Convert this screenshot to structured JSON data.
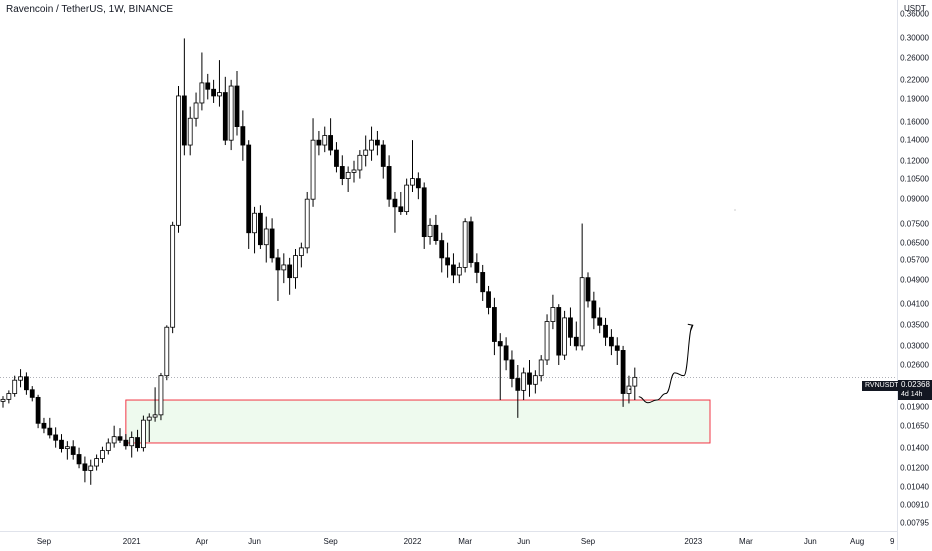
{
  "header": {
    "title": "Ravencoin / TetherUS, 1W, BINANCE"
  },
  "price_scale": {
    "unit": "USDT",
    "labels": [
      "0.36000",
      "0.30000",
      "0.26000",
      "0.22000",
      "0.19000",
      "0.16000",
      "0.14000",
      "0.12000",
      "0.10500",
      "0.09000",
      "0.07500",
      "0.06500",
      "0.05700",
      "0.04900",
      "0.04100",
      "0.03500",
      "0.03000",
      "0.02600",
      "0.01900",
      "0.01650",
      "0.01400",
      "0.01200",
      "0.01040",
      "0.00910",
      "0.00795"
    ]
  },
  "time_scale": {
    "labels": [
      "Sep",
      "2021",
      "Apr",
      "Jun",
      "Sep",
      "2022",
      "Mar",
      "Jun",
      "Sep",
      "2023",
      "Mar",
      "Jun",
      "Aug",
      "9"
    ]
  },
  "last_price": {
    "symbol": "RVNUSDT",
    "price": "0.02368",
    "countdown": "4d 14h"
  },
  "colors": {
    "up": "#ffffff",
    "down": "#000000",
    "wick": "#000000",
    "zone_fill": "#eefaee",
    "zone_border": "#f23645",
    "price_line": "#9598a1",
    "axis_text": "#131722"
  },
  "chart_data": {
    "type": "candlestick",
    "title": "Ravencoin / TetherUS, 1W, BINANCE",
    "y_scale": "log",
    "ylim": [
      0.0075,
      0.4
    ],
    "y_ticks": [
      0.36,
      0.3,
      0.26,
      0.22,
      0.19,
      0.16,
      0.14,
      0.12,
      0.105,
      0.09,
      0.075,
      0.065,
      0.057,
      0.049,
      0.041,
      0.035,
      0.03,
      0.026,
      0.019,
      0.0165,
      0.014,
      0.012,
      0.0104,
      0.0091,
      0.00795
    ],
    "x_ticks": [
      "Sep",
      "2021",
      "Apr",
      "Jun",
      "Sep",
      "2022",
      "Mar",
      "Jun",
      "Sep",
      "2023",
      "Mar",
      "Jun",
      "Aug",
      "9"
    ],
    "candles": [
      {
        "o": 0.0198,
        "h": 0.0206,
        "l": 0.0189,
        "c": 0.0201
      },
      {
        "o": 0.0201,
        "h": 0.0215,
        "l": 0.0195,
        "c": 0.021
      },
      {
        "o": 0.021,
        "h": 0.024,
        "l": 0.0205,
        "c": 0.0232
      },
      {
        "o": 0.0232,
        "h": 0.0252,
        "l": 0.022,
        "c": 0.0238
      },
      {
        "o": 0.0238,
        "h": 0.0246,
        "l": 0.0208,
        "c": 0.0216
      },
      {
        "o": 0.0216,
        "h": 0.0222,
        "l": 0.0198,
        "c": 0.0204
      },
      {
        "o": 0.0204,
        "h": 0.0208,
        "l": 0.0162,
        "c": 0.0168
      },
      {
        "o": 0.0168,
        "h": 0.0175,
        "l": 0.0156,
        "c": 0.0162
      },
      {
        "o": 0.0162,
        "h": 0.0175,
        "l": 0.015,
        "c": 0.0154
      },
      {
        "o": 0.0154,
        "h": 0.0163,
        "l": 0.014,
        "c": 0.0148
      },
      {
        "o": 0.0148,
        "h": 0.0155,
        "l": 0.0135,
        "c": 0.0139
      },
      {
        "o": 0.0139,
        "h": 0.0147,
        "l": 0.0128,
        "c": 0.0141
      },
      {
        "o": 0.0141,
        "h": 0.0148,
        "l": 0.0128,
        "c": 0.0133
      },
      {
        "o": 0.0133,
        "h": 0.014,
        "l": 0.012,
        "c": 0.0124
      },
      {
        "o": 0.0124,
        "h": 0.0131,
        "l": 0.0108,
        "c": 0.0118
      },
      {
        "o": 0.0118,
        "h": 0.0128,
        "l": 0.0106,
        "c": 0.0122
      },
      {
        "o": 0.0122,
        "h": 0.0133,
        "l": 0.0118,
        "c": 0.0129
      },
      {
        "o": 0.0129,
        "h": 0.0141,
        "l": 0.0125,
        "c": 0.0137
      },
      {
        "o": 0.0137,
        "h": 0.015,
        "l": 0.0133,
        "c": 0.0145
      },
      {
        "o": 0.0145,
        "h": 0.0165,
        "l": 0.014,
        "c": 0.0152
      },
      {
        "o": 0.0152,
        "h": 0.0162,
        "l": 0.0145,
        "c": 0.0148
      },
      {
        "o": 0.0148,
        "h": 0.0155,
        "l": 0.0138,
        "c": 0.0142
      },
      {
        "o": 0.0142,
        "h": 0.0158,
        "l": 0.013,
        "c": 0.0151
      },
      {
        "o": 0.0151,
        "h": 0.016,
        "l": 0.0136,
        "c": 0.014
      },
      {
        "o": 0.014,
        "h": 0.0178,
        "l": 0.0136,
        "c": 0.0172
      },
      {
        "o": 0.0172,
        "h": 0.0181,
        "l": 0.0146,
        "c": 0.0176
      },
      {
        "o": 0.0176,
        "h": 0.022,
        "l": 0.017,
        "c": 0.0179
      },
      {
        "o": 0.0179,
        "h": 0.0245,
        "l": 0.0172,
        "c": 0.024
      },
      {
        "o": 0.024,
        "h": 0.035,
        "l": 0.0232,
        "c": 0.0345
      },
      {
        "o": 0.0345,
        "h": 0.076,
        "l": 0.033,
        "c": 0.074
      },
      {
        "o": 0.074,
        "h": 0.21,
        "l": 0.07,
        "c": 0.195
      },
      {
        "o": 0.195,
        "h": 0.3,
        "l": 0.125,
        "c": 0.135
      },
      {
        "o": 0.135,
        "h": 0.18,
        "l": 0.125,
        "c": 0.165
      },
      {
        "o": 0.165,
        "h": 0.2,
        "l": 0.155,
        "c": 0.185
      },
      {
        "o": 0.185,
        "h": 0.27,
        "l": 0.175,
        "c": 0.215
      },
      {
        "o": 0.215,
        "h": 0.23,
        "l": 0.19,
        "c": 0.205
      },
      {
        "o": 0.205,
        "h": 0.22,
        "l": 0.185,
        "c": 0.195
      },
      {
        "o": 0.195,
        "h": 0.255,
        "l": 0.18,
        "c": 0.2
      },
      {
        "o": 0.2,
        "h": 0.225,
        "l": 0.135,
        "c": 0.14
      },
      {
        "o": 0.14,
        "h": 0.22,
        "l": 0.13,
        "c": 0.21
      },
      {
        "o": 0.21,
        "h": 0.235,
        "l": 0.145,
        "c": 0.155
      },
      {
        "o": 0.155,
        "h": 0.175,
        "l": 0.12,
        "c": 0.135
      },
      {
        "o": 0.135,
        "h": 0.14,
        "l": 0.062,
        "c": 0.07
      },
      {
        "o": 0.07,
        "h": 0.085,
        "l": 0.06,
        "c": 0.081
      },
      {
        "o": 0.081,
        "h": 0.086,
        "l": 0.062,
        "c": 0.064
      },
      {
        "o": 0.064,
        "h": 0.079,
        "l": 0.056,
        "c": 0.072
      },
      {
        "o": 0.072,
        "h": 0.078,
        "l": 0.056,
        "c": 0.058
      },
      {
        "o": 0.058,
        "h": 0.062,
        "l": 0.042,
        "c": 0.053
      },
      {
        "o": 0.053,
        "h": 0.06,
        "l": 0.048,
        "c": 0.055
      },
      {
        "o": 0.055,
        "h": 0.058,
        "l": 0.044,
        "c": 0.05
      },
      {
        "o": 0.05,
        "h": 0.062,
        "l": 0.046,
        "c": 0.059
      },
      {
        "o": 0.059,
        "h": 0.065,
        "l": 0.054,
        "c": 0.0625
      },
      {
        "o": 0.0625,
        "h": 0.095,
        "l": 0.06,
        "c": 0.09
      },
      {
        "o": 0.09,
        "h": 0.165,
        "l": 0.085,
        "c": 0.14
      },
      {
        "o": 0.14,
        "h": 0.15,
        "l": 0.125,
        "c": 0.135
      },
      {
        "o": 0.135,
        "h": 0.155,
        "l": 0.128,
        "c": 0.145
      },
      {
        "o": 0.145,
        "h": 0.165,
        "l": 0.125,
        "c": 0.13
      },
      {
        "o": 0.13,
        "h": 0.138,
        "l": 0.11,
        "c": 0.115
      },
      {
        "o": 0.115,
        "h": 0.125,
        "l": 0.1,
        "c": 0.105
      },
      {
        "o": 0.105,
        "h": 0.115,
        "l": 0.095,
        "c": 0.11
      },
      {
        "o": 0.11,
        "h": 0.12,
        "l": 0.102,
        "c": 0.112
      },
      {
        "o": 0.112,
        "h": 0.13,
        "l": 0.105,
        "c": 0.125
      },
      {
        "o": 0.125,
        "h": 0.145,
        "l": 0.115,
        "c": 0.13
      },
      {
        "o": 0.13,
        "h": 0.155,
        "l": 0.12,
        "c": 0.14
      },
      {
        "o": 0.14,
        "h": 0.15,
        "l": 0.125,
        "c": 0.135
      },
      {
        "o": 0.135,
        "h": 0.14,
        "l": 0.105,
        "c": 0.115
      },
      {
        "o": 0.115,
        "h": 0.125,
        "l": 0.085,
        "c": 0.09
      },
      {
        "o": 0.09,
        "h": 0.095,
        "l": 0.07,
        "c": 0.085
      },
      {
        "o": 0.085,
        "h": 0.095,
        "l": 0.08,
        "c": 0.082
      },
      {
        "o": 0.082,
        "h": 0.105,
        "l": 0.08,
        "c": 0.1
      },
      {
        "o": 0.1,
        "h": 0.14,
        "l": 0.095,
        "c": 0.105
      },
      {
        "o": 0.105,
        "h": 0.11,
        "l": 0.09,
        "c": 0.098
      },
      {
        "o": 0.098,
        "h": 0.102,
        "l": 0.062,
        "c": 0.068
      },
      {
        "o": 0.068,
        "h": 0.078,
        "l": 0.064,
        "c": 0.074
      },
      {
        "o": 0.074,
        "h": 0.08,
        "l": 0.064,
        "c": 0.066
      },
      {
        "o": 0.066,
        "h": 0.07,
        "l": 0.052,
        "c": 0.058
      },
      {
        "o": 0.058,
        "h": 0.065,
        "l": 0.05,
        "c": 0.055
      },
      {
        "o": 0.055,
        "h": 0.06,
        "l": 0.048,
        "c": 0.051
      },
      {
        "o": 0.051,
        "h": 0.056,
        "l": 0.048,
        "c": 0.054
      },
      {
        "o": 0.054,
        "h": 0.078,
        "l": 0.052,
        "c": 0.076
      },
      {
        "o": 0.076,
        "h": 0.079,
        "l": 0.054,
        "c": 0.056
      },
      {
        "o": 0.056,
        "h": 0.06,
        "l": 0.048,
        "c": 0.052
      },
      {
        "o": 0.052,
        "h": 0.055,
        "l": 0.042,
        "c": 0.045
      },
      {
        "o": 0.045,
        "h": 0.047,
        "l": 0.038,
        "c": 0.04
      },
      {
        "o": 0.04,
        "h": 0.043,
        "l": 0.028,
        "c": 0.031
      },
      {
        "o": 0.031,
        "h": 0.033,
        "l": 0.02,
        "c": 0.03
      },
      {
        "o": 0.03,
        "h": 0.032,
        "l": 0.025,
        "c": 0.027
      },
      {
        "o": 0.027,
        "h": 0.029,
        "l": 0.022,
        "c": 0.0235
      },
      {
        "o": 0.0235,
        "h": 0.026,
        "l": 0.0175,
        "c": 0.0215
      },
      {
        "o": 0.0215,
        "h": 0.0255,
        "l": 0.02,
        "c": 0.0245
      },
      {
        "o": 0.0245,
        "h": 0.027,
        "l": 0.0205,
        "c": 0.0225
      },
      {
        "o": 0.0225,
        "h": 0.025,
        "l": 0.021,
        "c": 0.024
      },
      {
        "o": 0.024,
        "h": 0.028,
        "l": 0.023,
        "c": 0.027
      },
      {
        "o": 0.027,
        "h": 0.038,
        "l": 0.026,
        "c": 0.036
      },
      {
        "o": 0.036,
        "h": 0.044,
        "l": 0.034,
        "c": 0.04
      },
      {
        "o": 0.04,
        "h": 0.041,
        "l": 0.026,
        "c": 0.028
      },
      {
        "o": 0.028,
        "h": 0.039,
        "l": 0.027,
        "c": 0.037
      },
      {
        "o": 0.037,
        "h": 0.04,
        "l": 0.03,
        "c": 0.032
      },
      {
        "o": 0.032,
        "h": 0.036,
        "l": 0.029,
        "c": 0.03
      },
      {
        "o": 0.03,
        "h": 0.075,
        "l": 0.029,
        "c": 0.05
      },
      {
        "o": 0.05,
        "h": 0.052,
        "l": 0.04,
        "c": 0.042
      },
      {
        "o": 0.042,
        "h": 0.045,
        "l": 0.034,
        "c": 0.037
      },
      {
        "o": 0.037,
        "h": 0.04,
        "l": 0.033,
        "c": 0.035
      },
      {
        "o": 0.035,
        "h": 0.037,
        "l": 0.03,
        "c": 0.032
      },
      {
        "o": 0.032,
        "h": 0.034,
        "l": 0.028,
        "c": 0.03
      },
      {
        "o": 0.03,
        "h": 0.032,
        "l": 0.026,
        "c": 0.029
      },
      {
        "o": 0.029,
        "h": 0.03,
        "l": 0.019,
        "c": 0.021
      },
      {
        "o": 0.021,
        "h": 0.024,
        "l": 0.0195,
        "c": 0.0222
      },
      {
        "o": 0.0222,
        "h": 0.0255,
        "l": 0.02,
        "c": 0.0237
      }
    ],
    "horizontal_line": {
      "value": 0.02368
    },
    "demand_zone": {
      "low": 0.0145,
      "high": 0.02
    },
    "projection_path": [
      [
        0,
        0.0205
      ],
      [
        1,
        0.0196
      ],
      [
        2,
        0.02
      ],
      [
        3,
        0.021
      ],
      [
        4,
        0.0245
      ],
      [
        5,
        0.024
      ],
      [
        6,
        0.035
      ]
    ],
    "grid": false,
    "legend": "none"
  }
}
